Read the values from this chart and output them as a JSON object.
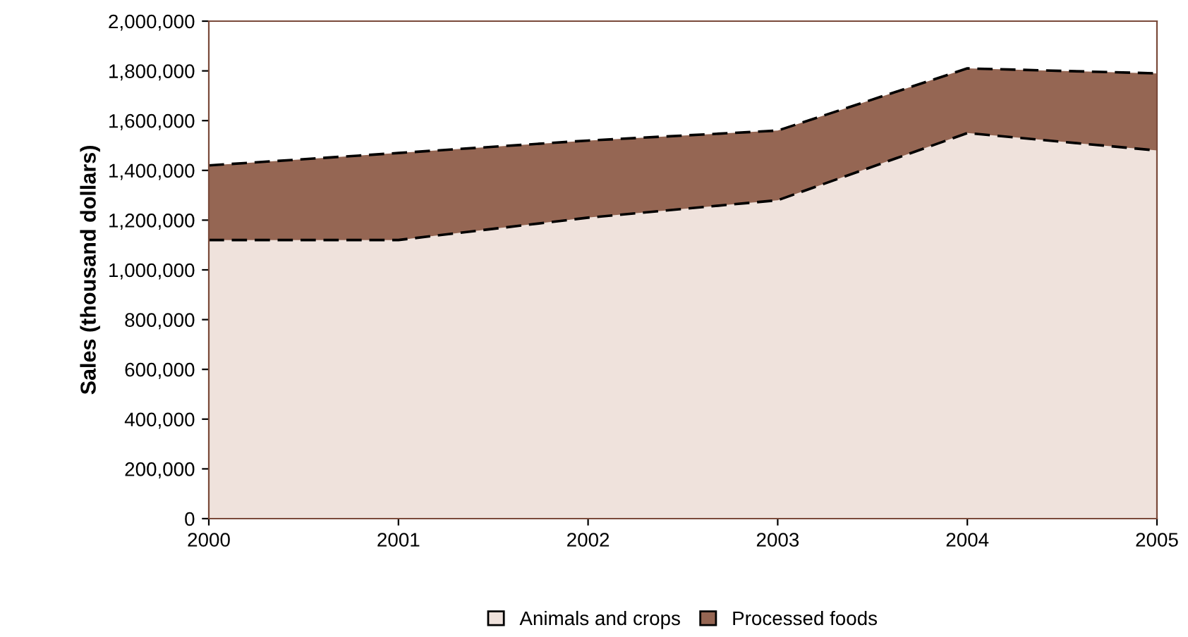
{
  "chart_data": {
    "type": "area",
    "stacked": true,
    "ylabel": "Sales (thousand dollars)",
    "categories": [
      "2000",
      "2001",
      "2002",
      "2003",
      "2004",
      "2005"
    ],
    "series": [
      {
        "name": "Animals and crops",
        "color": "#efe2dc",
        "values": [
          1120000,
          1120000,
          1210000,
          1280000,
          1550000,
          1480000
        ]
      },
      {
        "name": "Processed foods",
        "color": "#956653",
        "values": [
          300000,
          350000,
          310000,
          280000,
          260000,
          310000
        ]
      }
    ],
    "ylim": [
      0,
      2000000
    ],
    "yticks": [
      {
        "value": 0,
        "label": "0"
      },
      {
        "value": 200000,
        "label": "200,000"
      },
      {
        "value": 400000,
        "label": "400,000"
      },
      {
        "value": 600000,
        "label": "600,000"
      },
      {
        "value": 800000,
        "label": "800,000"
      },
      {
        "value": 1000000,
        "label": "1,000,000"
      },
      {
        "value": 1200000,
        "label": "1,200,000"
      },
      {
        "value": 1400000,
        "label": "1,400,000"
      },
      {
        "value": 1600000,
        "label": "1,600,000"
      },
      {
        "value": 1800000,
        "label": "1,800,000"
      },
      {
        "value": 2000000,
        "label": "2,000,000"
      }
    ],
    "line_style": "dashed",
    "grid": false,
    "legend": "bottom"
  }
}
